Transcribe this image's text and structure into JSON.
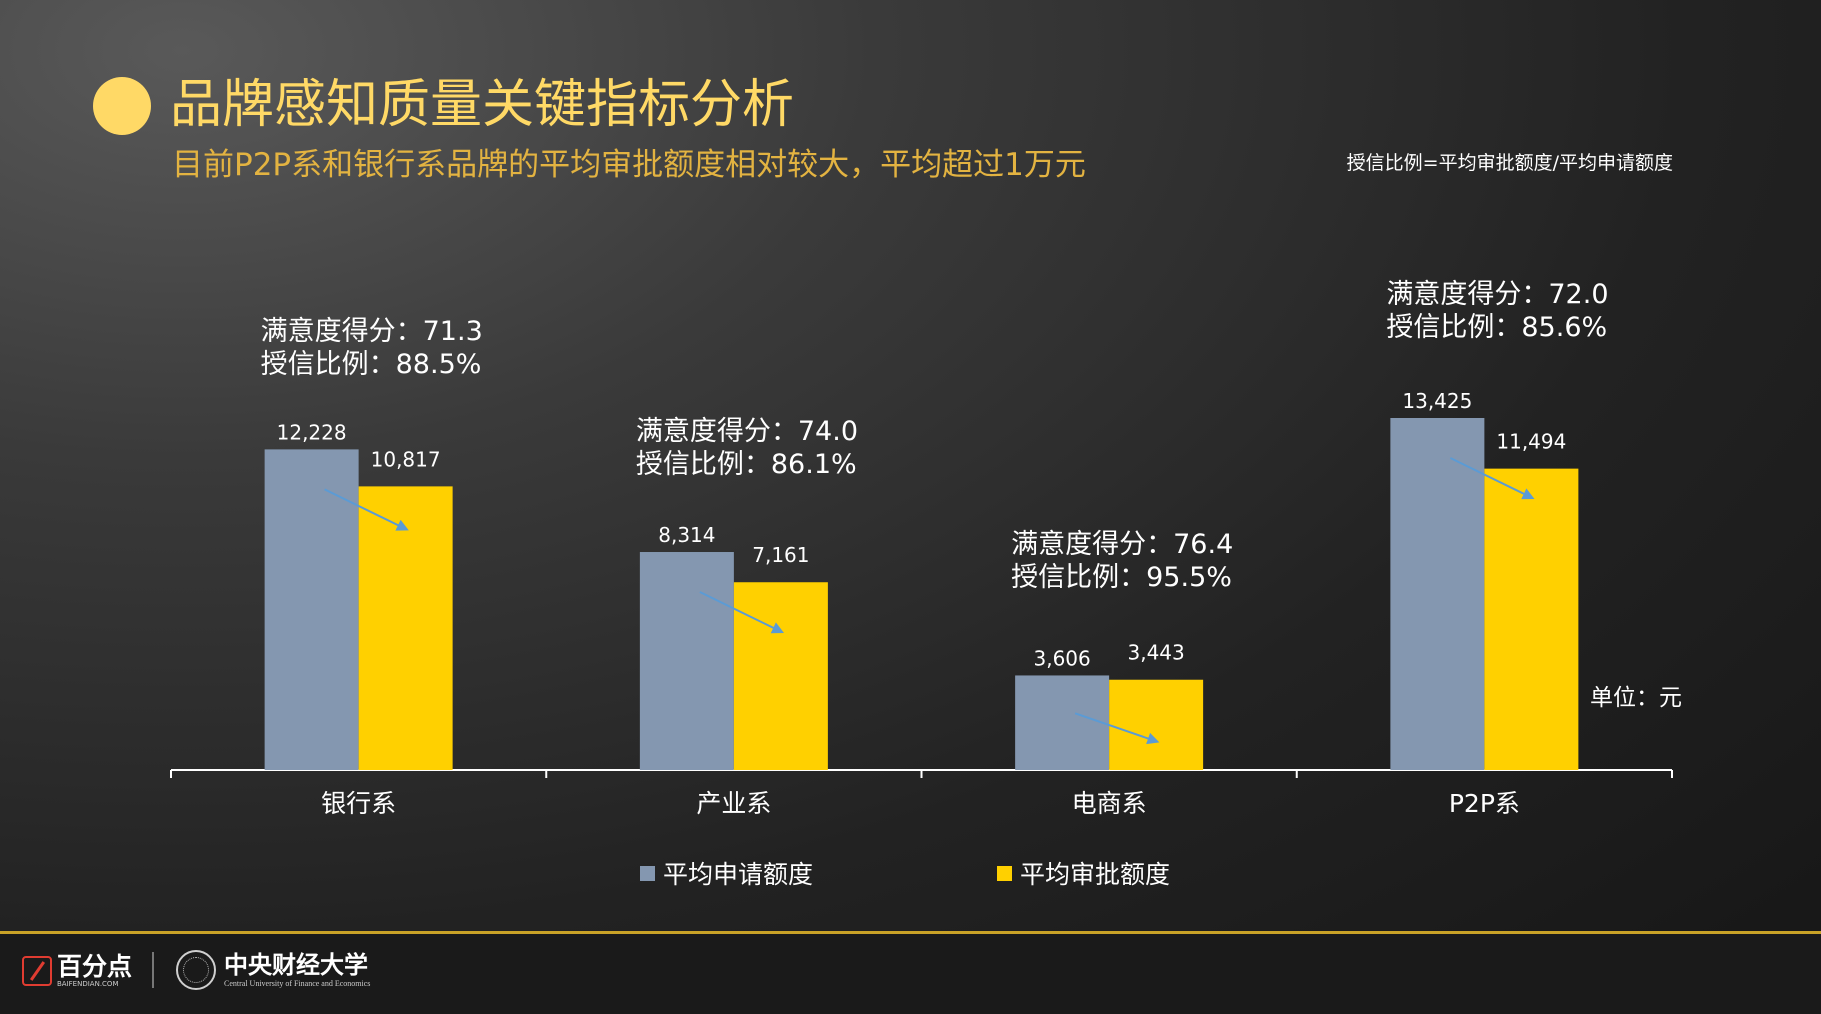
{
  "title": "品牌感知质量关键指标分析",
  "subtitle": "目前P2P系和银行系品牌的平均审批额度相对较大，平均超过1万元",
  "formula_note": "授信比例=平均审批额度/平均申请额度",
  "unit_label": "单位：元",
  "colors": {
    "accent": "#ffd966",
    "subtitle": "#e3b341",
    "series_apply": "#8497b0",
    "series_approve": "#ffd000",
    "arrow": "#5b9bd5",
    "footer_line": "#c9a227"
  },
  "chart_data": {
    "type": "bar",
    "categories": [
      "银行系",
      "产业系",
      "电商系",
      "P2P系"
    ],
    "series": [
      {
        "name": "平均申请额度",
        "values": [
          12228,
          8314,
          3606,
          13425
        ],
        "labels": [
          "12,228",
          "8,314",
          "3,606",
          "13,425"
        ]
      },
      {
        "name": "平均审批额度",
        "values": [
          10817,
          7161,
          3443,
          11494
        ],
        "labels": [
          "10,817",
          "7,161",
          "3,443",
          "11,494"
        ]
      }
    ],
    "annotations": [
      {
        "score": "满意度得分：71.3",
        "ratio": "授信比例：88.5%"
      },
      {
        "score": "满意度得分：74.0",
        "ratio": "授信比例：86.1%"
      },
      {
        "score": "满意度得分：76.4",
        "ratio": "授信比例：95.5%"
      },
      {
        "score": "满意度得分：72.0",
        "ratio": "授信比例：85.6%"
      }
    ],
    "ylim": [
      0,
      14500
    ],
    "legend_position": "bottom",
    "grid": false
  },
  "footer": {
    "logo_main": "百分点",
    "logo_sub": "BAIFENDIAN.COM",
    "university_main": "中央财经大学",
    "university_sub": "Central University of Finance and Economics"
  }
}
